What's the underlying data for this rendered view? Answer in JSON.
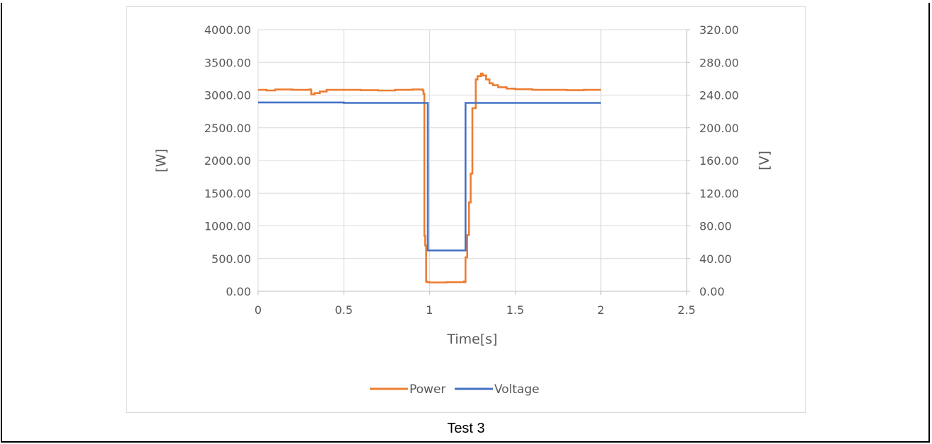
{
  "caption": "Test 3",
  "chart_data": {
    "type": "line",
    "xlabel": "Time[s]",
    "ylabel_left": "[W]",
    "ylabel_right": "[V]",
    "xlim": [
      0,
      2.5
    ],
    "ylim_left": [
      0,
      4000
    ],
    "ylim_right": [
      0,
      320
    ],
    "x_ticks": [
      "0",
      "0.5",
      "1",
      "1.5",
      "2",
      "2.5"
    ],
    "y_ticks_left": [
      "0.00",
      "500.00",
      "1000.00",
      "1500.00",
      "2000.00",
      "2500.00",
      "3000.00",
      "3500.00",
      "4000.00"
    ],
    "y_ticks_right": [
      "0.00",
      "40.00",
      "80.00",
      "120.00",
      "160.00",
      "200.00",
      "240.00",
      "280.00",
      "320.00"
    ],
    "grid": true,
    "legend_position": "bottom",
    "series": [
      {
        "name": "Power",
        "axis": "left",
        "color": "#ed7d31",
        "x": [
          0,
          0.05,
          0.1,
          0.2,
          0.3,
          0.31,
          0.33,
          0.36,
          0.4,
          0.5,
          0.6,
          0.7,
          0.8,
          0.9,
          0.96,
          0.965,
          0.97,
          0.975,
          0.98,
          0.985,
          1.0,
          1.1,
          1.2,
          1.205,
          1.21,
          1.22,
          1.23,
          1.24,
          1.25,
          1.26,
          1.27,
          1.28,
          1.3,
          1.31,
          1.33,
          1.35,
          1.37,
          1.4,
          1.45,
          1.5,
          1.6,
          1.7,
          1.8,
          1.9,
          2.0
        ],
        "y": [
          3080,
          3070,
          3085,
          3080,
          3085,
          3010,
          3030,
          3055,
          3080,
          3080,
          3075,
          3070,
          3080,
          3085,
          3070,
          3020,
          850,
          700,
          150,
          140,
          135,
          140,
          150,
          140,
          520,
          860,
          1360,
          1800,
          2800,
          2800,
          3240,
          3290,
          3330,
          3300,
          3240,
          3180,
          3150,
          3120,
          3100,
          3090,
          3080,
          3080,
          3075,
          3080,
          3080
        ]
      },
      {
        "name": "Voltage",
        "axis": "right",
        "color": "#4472c4",
        "x": [
          0,
          0.5,
          0.96,
          0.97,
          0.99,
          1.1,
          1.205,
          1.21,
          1.5,
          2.0
        ],
        "y": [
          231,
          230.5,
          230.5,
          230.5,
          50,
          50,
          50,
          230.5,
          230.5,
          230.5
        ]
      }
    ]
  }
}
